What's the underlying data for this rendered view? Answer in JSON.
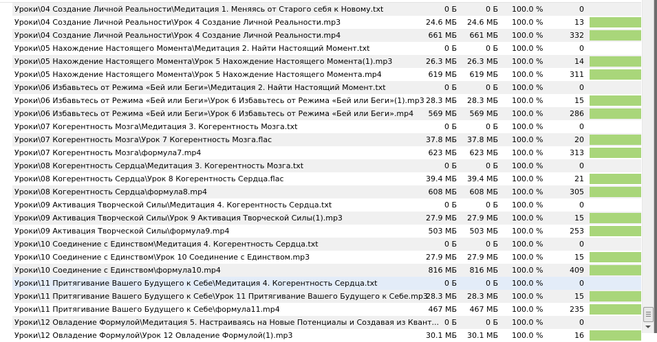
{
  "files": [
    {
      "name": "Уроки\\04 Создание Личной Реальности\\Медитация 1. Меняясь от Старого себя к Новому.txt",
      "size": "0 Б",
      "downloaded": "0 Б",
      "progress": "100.0 %",
      "pieces": "0",
      "piece_fill": 0
    },
    {
      "name": "Уроки\\04 Создание Личной Реальности\\Урок 4 Создание Личной Реальности.mp3",
      "size": "24.6 МБ",
      "downloaded": "24.6 МБ",
      "progress": "100.0 %",
      "pieces": "13",
      "piece_fill": 1
    },
    {
      "name": "Уроки\\04 Создание Личной Реальности\\Урок 4 Создание Личной Реальности.mp4",
      "size": "661 МБ",
      "downloaded": "661 МБ",
      "progress": "100.0 %",
      "pieces": "332",
      "piece_fill": 1
    },
    {
      "name": "Уроки\\05 Нахождение Настоящего Момента\\Медитация 2. Найти Настоящий Момент.txt",
      "size": "0 Б",
      "downloaded": "0 Б",
      "progress": "100.0 %",
      "pieces": "0",
      "piece_fill": 0
    },
    {
      "name": "Уроки\\05 Нахождение Настоящего Момента\\Урок 5 Нахождение Настоящего Момента(1).mp3",
      "size": "26.3 МБ",
      "downloaded": "26.3 МБ",
      "progress": "100.0 %",
      "pieces": "14",
      "piece_fill": 1
    },
    {
      "name": "Уроки\\05 Нахождение Настоящего Момента\\Урок 5 Нахождение Настоящего Момента.mp4",
      "size": "619 МБ",
      "downloaded": "619 МБ",
      "progress": "100.0 %",
      "pieces": "311",
      "piece_fill": 1
    },
    {
      "name": "Уроки\\06 Избавьтесь от Режима «Бей или Беги»\\Медитация 2. Найти Настоящий Момент.txt",
      "size": "0 Б",
      "downloaded": "0 Б",
      "progress": "100.0 %",
      "pieces": "0",
      "piece_fill": 0
    },
    {
      "name": "Уроки\\06 Избавьтесь от Режима «Бей или Беги»\\Урок 6 Избавьтесь от Режима «Бей или Беги»(1).mp3",
      "size": "28.3 МБ",
      "downloaded": "28.3 МБ",
      "progress": "100.0 %",
      "pieces": "15",
      "piece_fill": 1
    },
    {
      "name": "Уроки\\06 Избавьтесь от Режима «Бей или Беги»\\Урок 6 Избавьтесь от Режима «Бей или Беги».mp4",
      "size": "569 МБ",
      "downloaded": "569 МБ",
      "progress": "100.0 %",
      "pieces": "286",
      "piece_fill": 1
    },
    {
      "name": "Уроки\\07 Когерентность Мозга\\Медитация 3. Когерентность Мозга.txt",
      "size": "0 Б",
      "downloaded": "0 Б",
      "progress": "100.0 %",
      "pieces": "0",
      "piece_fill": 0
    },
    {
      "name": "Уроки\\07 Когерентность Мозга\\Урок 7 Когерентность Мозга.flac",
      "size": "37.8 МБ",
      "downloaded": "37.8 МБ",
      "progress": "100.0 %",
      "pieces": "20",
      "piece_fill": 1
    },
    {
      "name": "Уроки\\07 Когерентность Мозга\\формула7.mp4",
      "size": "623 МБ",
      "downloaded": "623 МБ",
      "progress": "100.0 %",
      "pieces": "313",
      "piece_fill": 1
    },
    {
      "name": "Уроки\\08 Когерентность Сердца\\Медитация 3. Когерентность Мозга.txt",
      "size": "0 Б",
      "downloaded": "0 Б",
      "progress": "100.0 %",
      "pieces": "0",
      "piece_fill": 0
    },
    {
      "name": "Уроки\\08 Когерентность Сердца\\Урок 8 Когерентность Сердца.flac",
      "size": "39.4 МБ",
      "downloaded": "39.4 МБ",
      "progress": "100.0 %",
      "pieces": "21",
      "piece_fill": 1
    },
    {
      "name": "Уроки\\08 Когерентность Сердца\\формула8.mp4",
      "size": "608 МБ",
      "downloaded": "608 МБ",
      "progress": "100.0 %",
      "pieces": "305",
      "piece_fill": 1
    },
    {
      "name": "Уроки\\09 Активация Творческой Силы\\Медитация 4. Когерентность Сердца.txt",
      "size": "0 Б",
      "downloaded": "0 Б",
      "progress": "100.0 %",
      "pieces": "0",
      "piece_fill": 0
    },
    {
      "name": "Уроки\\09 Активация Творческой Силы\\Урок 9 Активация Творческой Силы(1).mp3",
      "size": "27.9 МБ",
      "downloaded": "27.9 МБ",
      "progress": "100.0 %",
      "pieces": "15",
      "piece_fill": 1
    },
    {
      "name": "Уроки\\09 Активация Творческой Силы\\формула9.mp4",
      "size": "503 МБ",
      "downloaded": "503 МБ",
      "progress": "100.0 %",
      "pieces": "253",
      "piece_fill": 1
    },
    {
      "name": "Уроки\\10 Соединение с Единством\\Медитация 4. Когерентность Сердца.txt",
      "size": "0 Б",
      "downloaded": "0 Б",
      "progress": "100.0 %",
      "pieces": "0",
      "piece_fill": 0
    },
    {
      "name": "Уроки\\10 Соединение с Единством\\Урок 10 Соединение с Единством.mp3",
      "size": "27.9 МБ",
      "downloaded": "27.9 МБ",
      "progress": "100.0 %",
      "pieces": "15",
      "piece_fill": 1
    },
    {
      "name": "Уроки\\10 Соединение с Единством\\формула10.mp4",
      "size": "816 МБ",
      "downloaded": "816 МБ",
      "progress": "100.0 %",
      "pieces": "409",
      "piece_fill": 1
    },
    {
      "name": "Уроки\\11 Притягивание Вашего Будущего к Себе\\Медитация 4. Когерентность Сердца.txt",
      "size": "0 Б",
      "downloaded": "0 Б",
      "progress": "100.0 %",
      "pieces": "0",
      "piece_fill": 0,
      "hovered": true
    },
    {
      "name": "Уроки\\11 Притягивание Вашего Будущего к Себе\\Урок 11 Притягивание Вашего Будущего к Себе.mp3",
      "size": "28.3 МБ",
      "downloaded": "28.3 МБ",
      "progress": "100.0 %",
      "pieces": "15",
      "piece_fill": 1
    },
    {
      "name": "Уроки\\11 Притягивание Вашего Будущего к Себе\\формула11.mp4",
      "size": "467 МБ",
      "downloaded": "467 МБ",
      "progress": "100.0 %",
      "pieces": "235",
      "piece_fill": 1
    },
    {
      "name": "Уроки\\12 Овладение Формулой\\Медитация 5. Настраиваясь на Новые Потенциалы и Создавая из Квант...",
      "size": "0 Б",
      "downloaded": "0 Б",
      "progress": "100.0 %",
      "pieces": "0",
      "piece_fill": 0
    },
    {
      "name": "Уроки\\12 Овладение Формулой\\Урок 12 Овладение Формулой(1).mp3",
      "size": "30.1 МБ",
      "downloaded": "30.1 МБ",
      "progress": "100.0 %",
      "pieces": "16",
      "piece_fill": 1
    }
  ],
  "colors": {
    "piece_bar": "#a9d67a",
    "alt_row": "#f0f0f0",
    "hover_row": "#e3ecf8"
  }
}
